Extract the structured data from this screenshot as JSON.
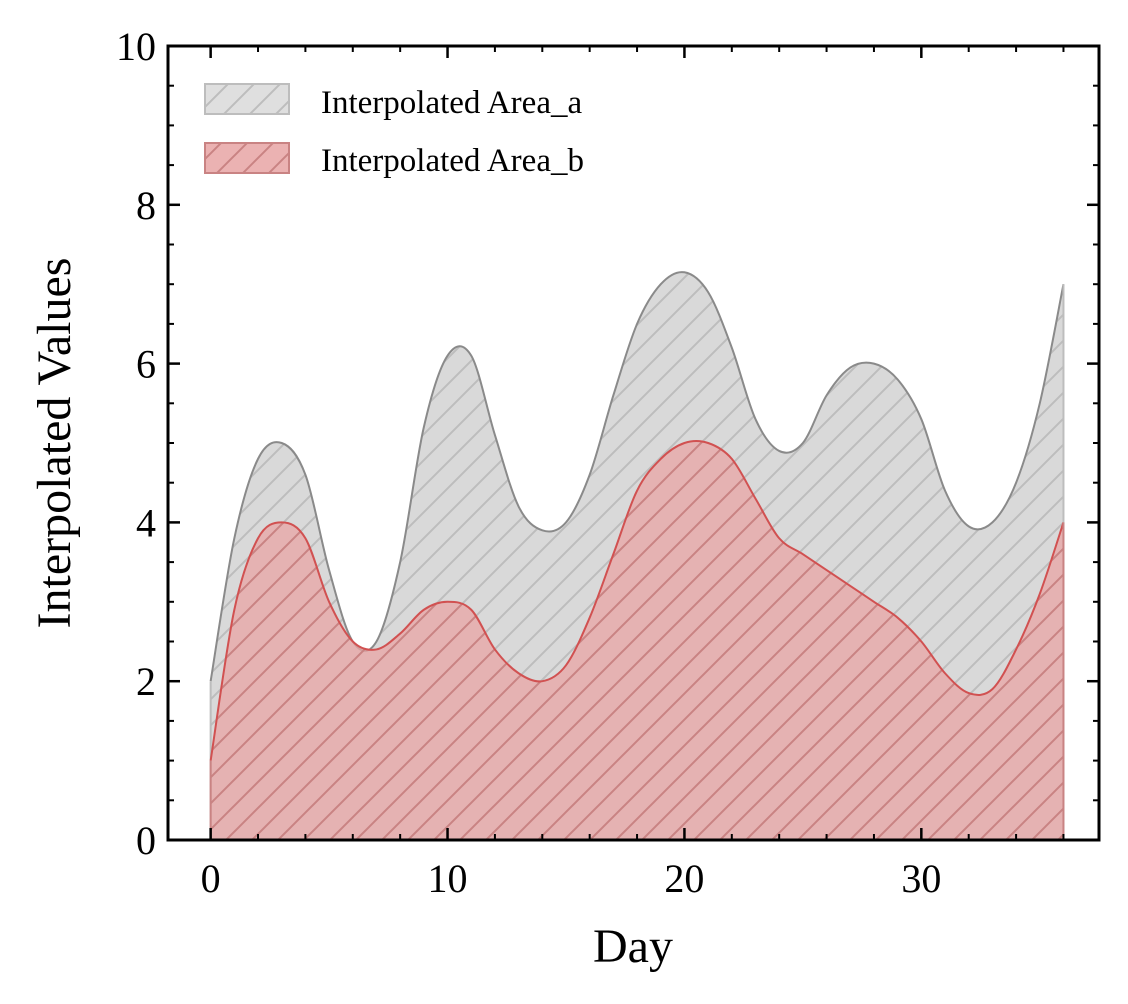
{
  "chart_data": {
    "type": "area",
    "xlabel": "Day",
    "ylabel": "Interpolated Values",
    "xlim": [
      -1.8,
      37.5
    ],
    "ylim": [
      0,
      10
    ],
    "xticks": [
      0,
      10,
      20,
      30
    ],
    "yticks": [
      0,
      2,
      4,
      6,
      8,
      10
    ],
    "x_minor_step": 2,
    "y_minor_step": 0.5,
    "legend_position": "top-left",
    "grid": false,
    "x": [
      0,
      1,
      2,
      3,
      4,
      5,
      6,
      7,
      8,
      9,
      10,
      11,
      12,
      13,
      14,
      15,
      16,
      17,
      18,
      19,
      20,
      21,
      22,
      23,
      24,
      25,
      26,
      27,
      28,
      29,
      30,
      31,
      32,
      33,
      34,
      35,
      36
    ],
    "series": [
      {
        "name": "Interpolated Area_a",
        "fill": "#d9d9d9",
        "stroke": "#8a8a8a",
        "hatch": "#bdbdbd",
        "values": [
          2.0,
          3.8,
          4.8,
          5.0,
          4.6,
          3.4,
          2.5,
          2.5,
          3.5,
          5.2,
          6.1,
          6.1,
          5.1,
          4.2,
          3.9,
          4.0,
          4.6,
          5.6,
          6.5,
          7.0,
          7.15,
          6.9,
          6.2,
          5.3,
          4.9,
          5.0,
          5.6,
          5.95,
          6.0,
          5.8,
          5.3,
          4.4,
          3.95,
          4.0,
          4.5,
          5.5,
          7.0
        ]
      },
      {
        "name": "Interpolated Area_b",
        "fill": "#e8a4a4",
        "stroke": "#d15151",
        "hatch": "#c98383",
        "values": [
          1.0,
          2.9,
          3.8,
          4.0,
          3.8,
          3.0,
          2.5,
          2.4,
          2.6,
          2.9,
          3.0,
          2.9,
          2.4,
          2.1,
          2.0,
          2.2,
          2.8,
          3.6,
          4.4,
          4.8,
          5.0,
          5.0,
          4.8,
          4.3,
          3.8,
          3.6,
          3.4,
          3.2,
          3.0,
          2.8,
          2.5,
          2.1,
          1.85,
          1.9,
          2.4,
          3.1,
          4.0
        ]
      }
    ]
  }
}
